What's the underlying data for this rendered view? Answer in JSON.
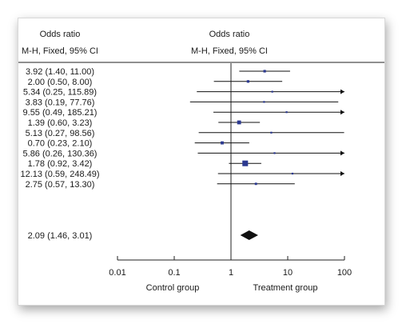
{
  "chart_data": {
    "type": "forest",
    "left_header": [
      "Odds ratio",
      "M-H, Fixed, 95% CI"
    ],
    "right_header": [
      "Odds ratio",
      "M-H, Fixed, 95% CI"
    ],
    "scale": "log",
    "xlim": [
      0.01,
      100
    ],
    "x_ticks": [
      0.01,
      0.1,
      1,
      10,
      100
    ],
    "x_tick_labels": [
      "0.01",
      "0.1",
      "1",
      "10",
      "100"
    ],
    "xlabel_left": "Control group",
    "xlabel_right": "Treatment group",
    "marker_color": "#2b3990",
    "studies": [
      {
        "label": "3.92 (1.40, 11.00)",
        "or": 3.92,
        "lo": 1.4,
        "hi": 11.0,
        "weight": 1.0
      },
      {
        "label": "2.00 (0.50, 8.00)",
        "or": 2.0,
        "lo": 0.5,
        "hi": 8.0,
        "weight": 1.0
      },
      {
        "label": "5.34 (0.25, 115.89)",
        "or": 5.34,
        "lo": 0.25,
        "hi": 115.89,
        "weight": 0.7
      },
      {
        "label": "3.83 (0.19, 77.76)",
        "or": 3.83,
        "lo": 0.19,
        "hi": 77.76,
        "weight": 0.7
      },
      {
        "label": "9.55 (0.49, 185.21)",
        "or": 9.55,
        "lo": 0.49,
        "hi": 185.21,
        "weight": 0.7
      },
      {
        "label": "1.39 (0.60, 3.23)",
        "or": 1.39,
        "lo": 0.6,
        "hi": 3.23,
        "weight": 1.5
      },
      {
        "label": "5.13 (0.27, 98.56)",
        "or": 5.13,
        "lo": 0.27,
        "hi": 98.56,
        "weight": 0.7
      },
      {
        "label": "0.70 (0.23, 2.10)",
        "or": 0.7,
        "lo": 0.23,
        "hi": 2.1,
        "weight": 1.2
      },
      {
        "label": "5.86 (0.26, 130.36)",
        "or": 5.86,
        "lo": 0.26,
        "hi": 130.36,
        "weight": 0.7
      },
      {
        "label": "1.78 (0.92, 3.42)",
        "or": 1.78,
        "lo": 0.92,
        "hi": 3.42,
        "weight": 2.2
      },
      {
        "label": "12.13 (0.59, 248.49)",
        "or": 12.13,
        "lo": 0.59,
        "hi": 248.49,
        "weight": 0.7
      },
      {
        "label": "2.75 (0.57, 13.30)",
        "or": 2.75,
        "lo": 0.57,
        "hi": 13.3,
        "weight": 0.9
      }
    ],
    "pooled": {
      "label": "2.09 (1.46, 3.01)",
      "or": 2.09,
      "lo": 1.46,
      "hi": 3.01
    }
  }
}
